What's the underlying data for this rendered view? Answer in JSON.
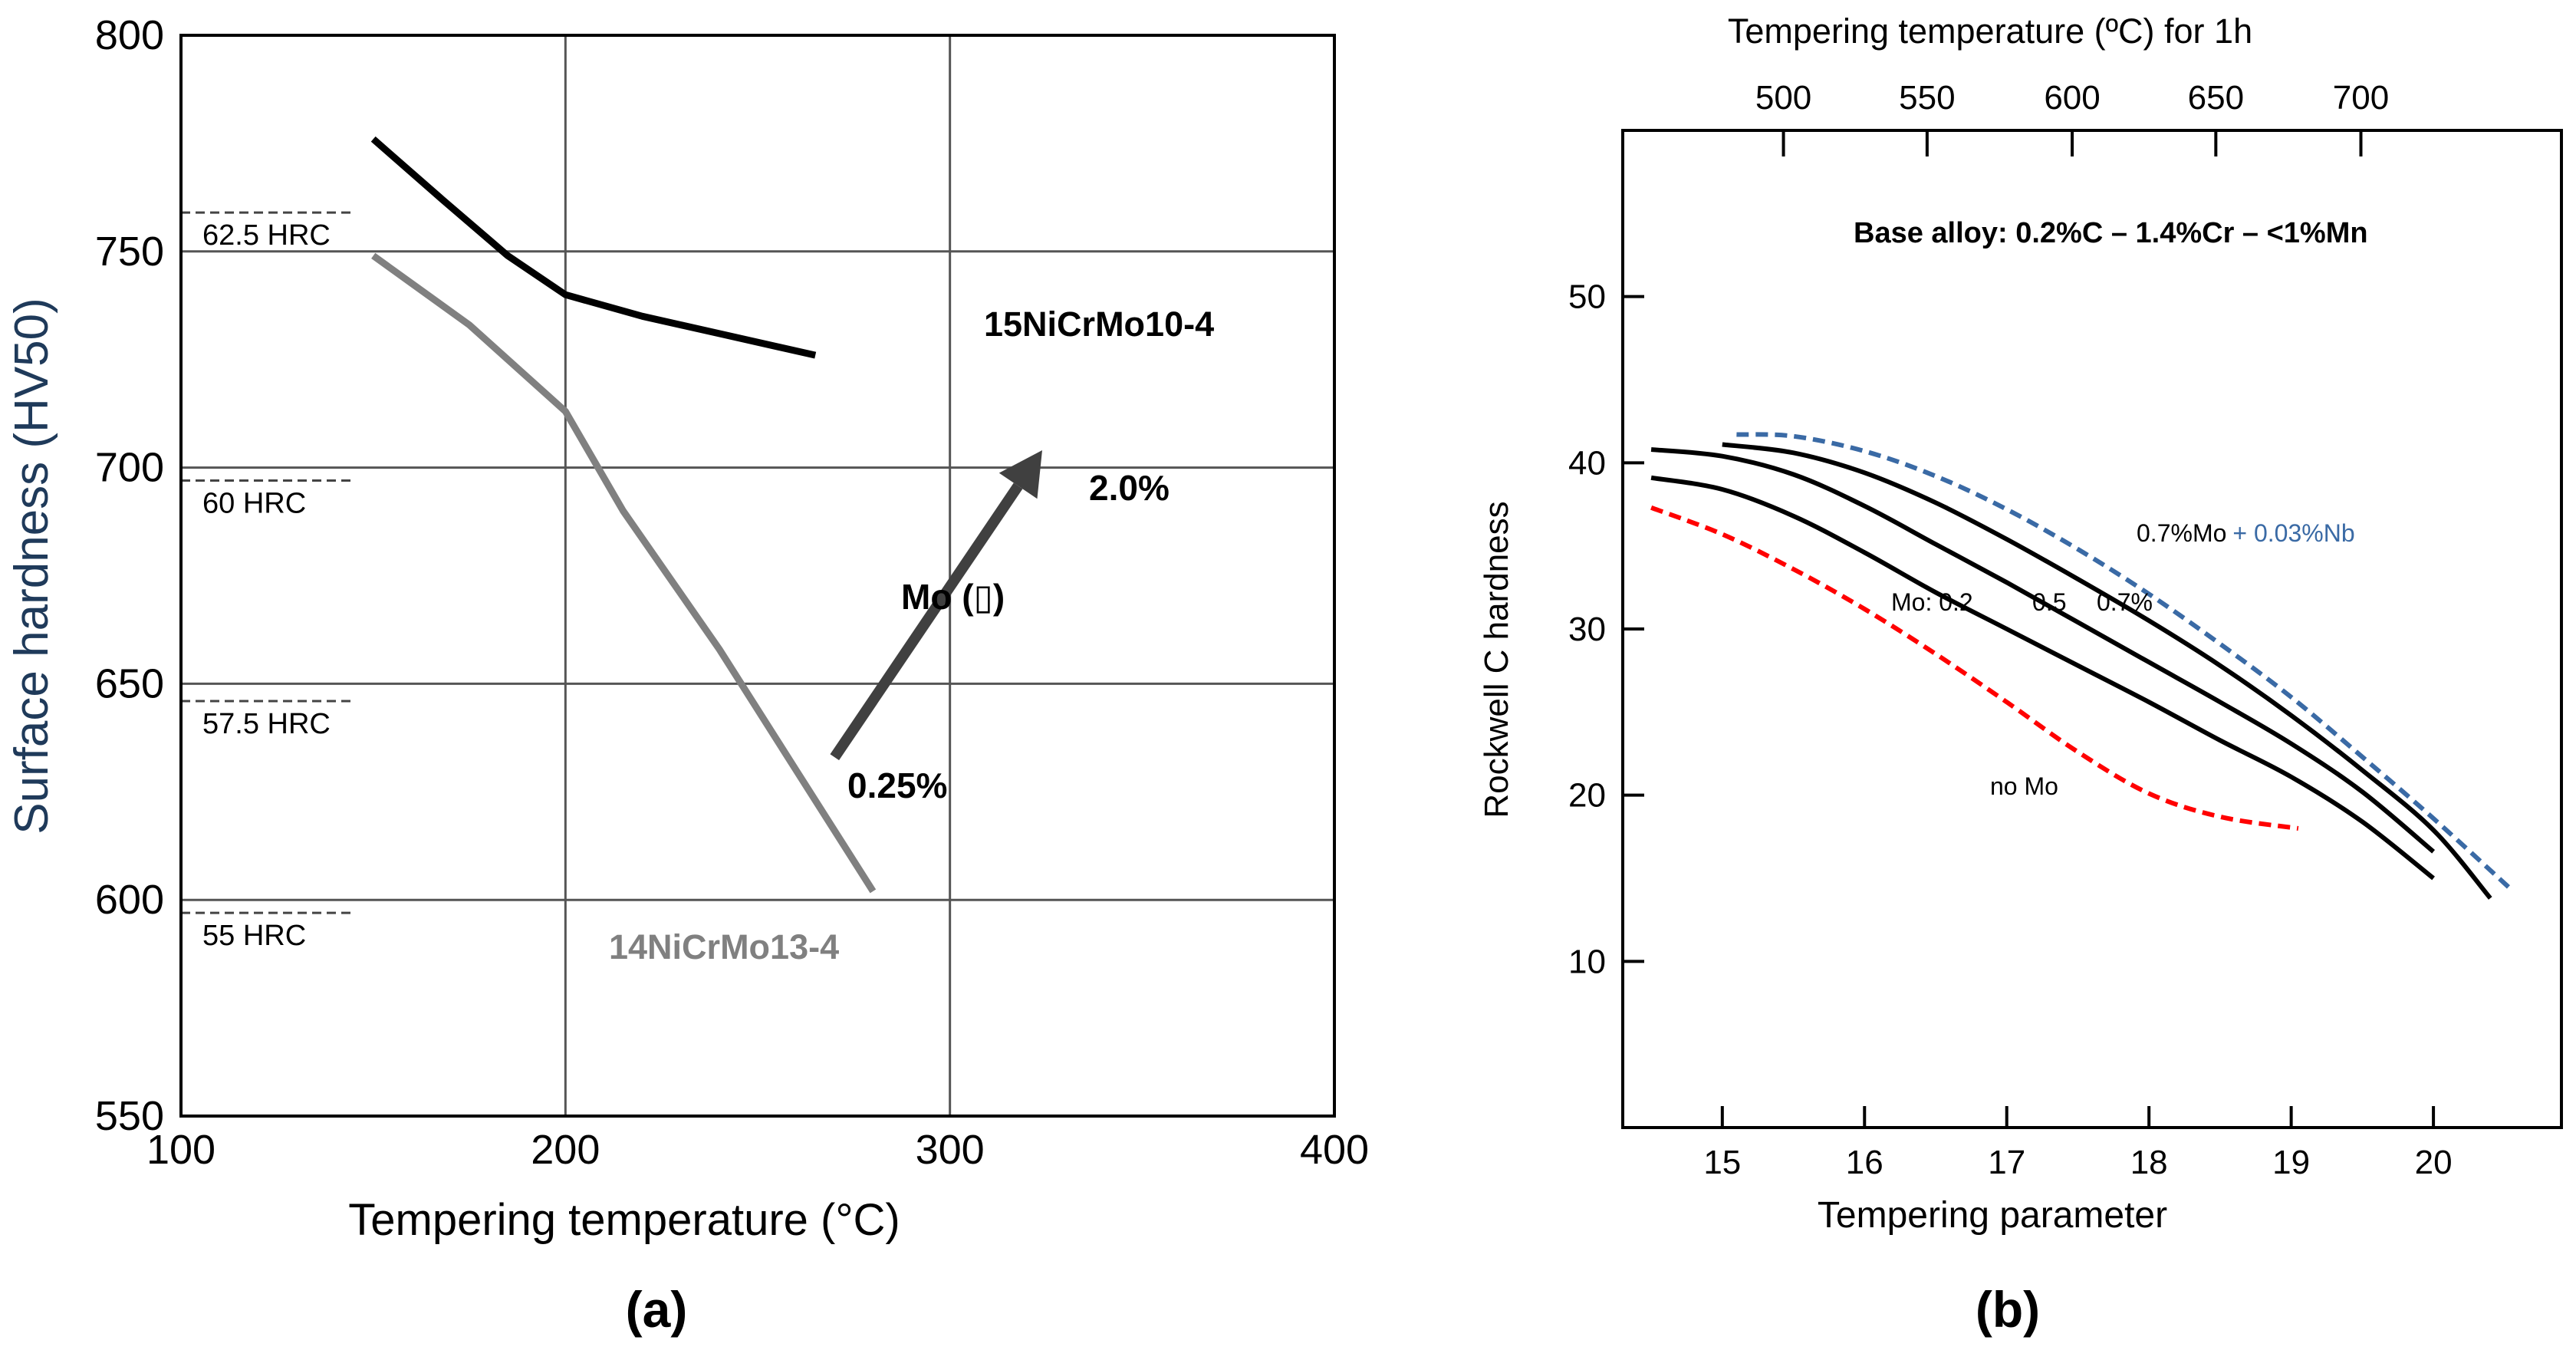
{
  "chart_data": [
    {
      "panel_label": "(a)",
      "type": "line",
      "xlabel": "Tempering temperature (°C)",
      "ylabel": "Surface hardness (HV50)",
      "xlim": [
        100,
        400
      ],
      "ylim": [
        550,
        800
      ],
      "x_ticks": [
        "100",
        "200",
        "300",
        "400"
      ],
      "y_ticks": [
        "550",
        "600",
        "650",
        "700",
        "750",
        "800"
      ],
      "grid": true,
      "series": [
        {
          "name": "15NiCrMo10-4",
          "color": "#000000",
          "x": [
            150,
            168,
            185,
            200,
            220,
            240,
            265
          ],
          "y": [
            776,
            762,
            749,
            740,
            735,
            731,
            726
          ]
        },
        {
          "name": "14NiCrMo13-4",
          "color": "#808080",
          "x": [
            150,
            175,
            200,
            215,
            240,
            260,
            280
          ],
          "y": [
            749,
            733,
            713,
            690,
            658,
            630,
            602
          ]
        }
      ],
      "hrc_reference": [
        {
          "label": "62.5 HRC",
          "hv": 759
        },
        {
          "label": "60 HRC",
          "hv": 697
        },
        {
          "label": "57.5 HRC",
          "hv": 646
        },
        {
          "label": "55 HRC",
          "hv": 597
        }
      ],
      "annotations": {
        "arrow_label": "Mo (",
        "arrow_label_glyph": "▯",
        "arrow_label_close": ")",
        "arrow_start_label": "0.25%",
        "arrow_end_label": "2.0%"
      }
    },
    {
      "panel_label": "(b)",
      "type": "line",
      "xlabel": "Tempering parameter",
      "ylabel": "Rockwell C hardness",
      "top_xlabel": "Tempering temperature (ºC) for 1h",
      "title": "Base alloy: 0.2%C – 1.4%Cr – <1%Mn",
      "xlim": [
        14.3,
        20.9
      ],
      "ylim": [
        0,
        60
      ],
      "x_ticks": [
        15,
        16,
        17,
        18,
        19,
        20
      ],
      "y_ticks": [
        10,
        20,
        30,
        40,
        50
      ],
      "top_ticks": [
        {
          "label": "500",
          "param": 15.43
        },
        {
          "label": "550",
          "param": 16.44
        },
        {
          "label": "600",
          "param": 17.46
        },
        {
          "label": "650",
          "param": 18.47
        },
        {
          "label": "700",
          "param": 19.49
        }
      ],
      "grid": false,
      "series": [
        {
          "name": "no Mo",
          "color": "#ff0000",
          "dashed": true,
          "x": [
            14.5,
            15.0,
            15.5,
            16.0,
            16.5,
            17.0,
            17.5,
            18.0,
            18.5,
            19.05
          ],
          "y": [
            37.3,
            35.7,
            33.6,
            31.2,
            28.5,
            25.6,
            22.6,
            20.1,
            18.7,
            18.0
          ]
        },
        {
          "name": "0.2",
          "color": "#000000",
          "x": [
            14.5,
            15.0,
            15.5,
            16.0,
            16.5,
            17.0,
            17.5,
            18.0,
            18.5,
            19.0,
            19.5,
            20.0
          ],
          "y": [
            39.1,
            38.4,
            36.8,
            34.6,
            32.2,
            30.0,
            27.8,
            25.6,
            23.3,
            21.1,
            18.4,
            15.0
          ]
        },
        {
          "name": "0.5",
          "color": "#000000",
          "x": [
            14.5,
            15.0,
            15.5,
            16.0,
            16.5,
            17.0,
            17.5,
            18.0,
            18.5,
            19.0,
            19.5,
            20.0
          ],
          "y": [
            40.8,
            40.4,
            39.3,
            37.4,
            35.1,
            32.8,
            30.4,
            28.0,
            25.6,
            23.1,
            20.2,
            16.6
          ]
        },
        {
          "name": "0.7%",
          "color": "#000000",
          "x": [
            15.0,
            15.5,
            16.0,
            16.5,
            17.0,
            17.5,
            18.0,
            18.5,
            19.0,
            19.5,
            20.0,
            20.4
          ],
          "y": [
            41.1,
            40.6,
            39.4,
            37.6,
            35.4,
            33.0,
            30.5,
            27.8,
            24.8,
            21.5,
            17.9,
            13.8
          ]
        },
        {
          "name": "0.7%Mo + 0.03%Nb",
          "color": "#3a6aa5",
          "dashed": true,
          "x": [
            15.1,
            15.5,
            16.0,
            16.5,
            17.0,
            17.5,
            18.0,
            18.5,
            19.0,
            19.5,
            20.0,
            20.55
          ],
          "y": [
            41.7,
            41.6,
            40.7,
            39.2,
            37.2,
            34.8,
            32.1,
            29.1,
            25.9,
            22.3,
            18.6,
            14.3
          ]
        }
      ],
      "annotations": {
        "mo_prefix": "Mo: 0.2",
        "mo_mid": "0.5",
        "mo_end": "0.7%",
        "nb_black": "0.7%Mo",
        "nb_blue": "+ 0.03%Nb",
        "no_mo": "no Mo"
      }
    }
  ]
}
